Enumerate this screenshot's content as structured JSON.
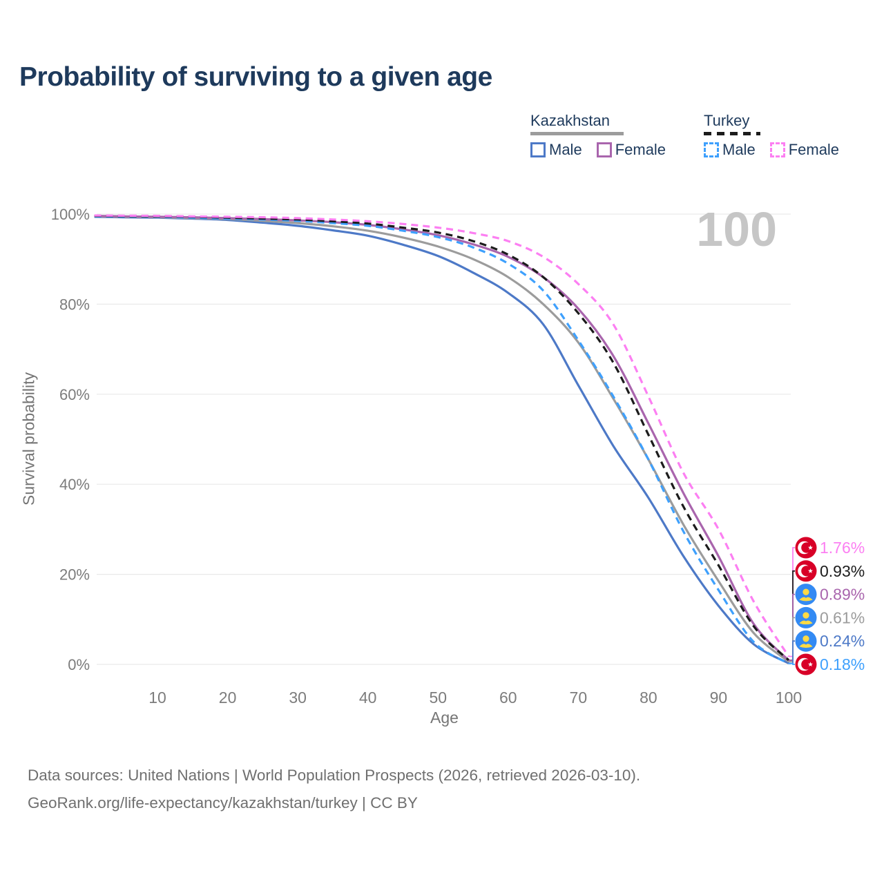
{
  "page": {
    "title": "Probability of surviving to a given age",
    "watermark_age": "100"
  },
  "legend": {
    "kazakhstan": {
      "title": "Kazakhstan",
      "style": "solid",
      "underline_color": "#9c9c9c",
      "male_label": "Male",
      "female_label": "Female",
      "male_color": "#4d79c7",
      "female_color": "#a965ad"
    },
    "turkey": {
      "title": "Turkey",
      "style": "dashed",
      "underline_color": "#1c1c1c",
      "male_label": "Male",
      "female_label": "Female",
      "male_color": "#3ea0fd",
      "female_color": "#fc7ff2"
    }
  },
  "chart_data": {
    "type": "line",
    "title": "Probability of surviving to a given age",
    "xlabel": "Age",
    "ylabel": "Survival probability",
    "xlim": [
      1,
      100
    ],
    "ylim": [
      0,
      100
    ],
    "grid": "horizontal",
    "grid_color": "#e9e9e9",
    "tick_color": "#7c7c7c",
    "x_ticks": [
      10,
      20,
      30,
      40,
      50,
      60,
      70,
      80,
      90,
      100
    ],
    "y_ticks": [
      {
        "value": 0,
        "label": "0%"
      },
      {
        "value": 20,
        "label": "20%"
      },
      {
        "value": 40,
        "label": "40%"
      },
      {
        "value": 60,
        "label": "60%"
      },
      {
        "value": 80,
        "label": "80%"
      },
      {
        "value": 100,
        "label": "100%"
      }
    ],
    "ages": [
      1,
      5,
      10,
      15,
      20,
      25,
      30,
      35,
      40,
      45,
      50,
      55,
      60,
      65,
      70,
      75,
      80,
      85,
      90,
      95,
      100
    ],
    "series": [
      {
        "id": "kazakhstan-male",
        "name": "Kazakhstan Male",
        "flag": "kazakhstan",
        "color": "#4d79c7",
        "dashed": false,
        "end_label": "0.24%",
        "values": [
          99.4,
          99.3,
          99.2,
          99.0,
          98.7,
          98.1,
          97.4,
          96.4,
          95.2,
          93.2,
          90.7,
          87.0,
          82.5,
          75.5,
          62.0,
          48.5,
          37.0,
          24.0,
          13.0,
          4.5,
          0.24
        ]
      },
      {
        "id": "kazakhstan-total",
        "name": "Kazakhstan Both sexes",
        "flag": "kazakhstan",
        "color": "#9c9c9c",
        "dashed": false,
        "end_label": "0.61%",
        "values": [
          99.5,
          99.4,
          99.3,
          99.1,
          98.9,
          98.5,
          98.0,
          97.3,
          96.3,
          94.8,
          92.8,
          90.0,
          86.0,
          80.0,
          71.5,
          59.0,
          45.5,
          31.0,
          18.5,
          7.0,
          0.61
        ]
      },
      {
        "id": "kazakhstan-female",
        "name": "Kazakhstan Female",
        "flag": "kazakhstan",
        "color": "#a965ad",
        "dashed": false,
        "end_label": "0.89%",
        "values": [
          99.6,
          99.5,
          99.4,
          99.3,
          99.1,
          98.9,
          98.6,
          98.2,
          97.6,
          96.6,
          95.3,
          93.3,
          90.5,
          86.0,
          79.0,
          68.5,
          53.5,
          38.0,
          24.0,
          9.0,
          0.89
        ]
      },
      {
        "id": "turkey-male",
        "name": "Turkey Male",
        "flag": "turkey",
        "color": "#3ea0fd",
        "dashed": true,
        "end_label": "0.18%",
        "values": [
          99.5,
          99.45,
          99.4,
          99.2,
          99.0,
          98.8,
          98.5,
          98.0,
          97.4,
          96.3,
          94.9,
          92.6,
          89.0,
          83.0,
          72.0,
          59.5,
          45.5,
          29.5,
          16.5,
          5.0,
          0.18
        ]
      },
      {
        "id": "turkey-total",
        "name": "Turkey Both sexes",
        "flag": "turkey",
        "color": "#1c1c1c",
        "dashed": true,
        "end_label": "0.93%",
        "values": [
          99.6,
          99.55,
          99.5,
          99.4,
          99.2,
          99.0,
          98.8,
          98.4,
          97.9,
          97.0,
          95.9,
          94.0,
          91.0,
          86.0,
          78.0,
          67.0,
          51.0,
          35.0,
          22.0,
          8.5,
          0.93
        ]
      },
      {
        "id": "turkey-female",
        "name": "Turkey Female",
        "flag": "turkey",
        "color": "#fc7ff2",
        "dashed": true,
        "end_label": "1.76%",
        "values": [
          99.7,
          99.65,
          99.6,
          99.5,
          99.4,
          99.3,
          99.1,
          98.8,
          98.4,
          97.8,
          97.0,
          95.8,
          94.0,
          90.5,
          84.5,
          75.5,
          59.5,
          42.5,
          30.0,
          14.0,
          1.76
        ]
      }
    ],
    "flag_colors": {
      "turkey_red": "#d80027",
      "kazakhstan_blue": "#338af3",
      "emblem_yellow": "#ffda44",
      "crescent_white": "#ffffff"
    }
  },
  "footer": {
    "line1": "Data sources: United Nations | World Population Prospects (2026, retrieved 2026-03-10).",
    "line2": "GeoRank.org/life-expectancy/kazakhstan/turkey | CC BY"
  }
}
